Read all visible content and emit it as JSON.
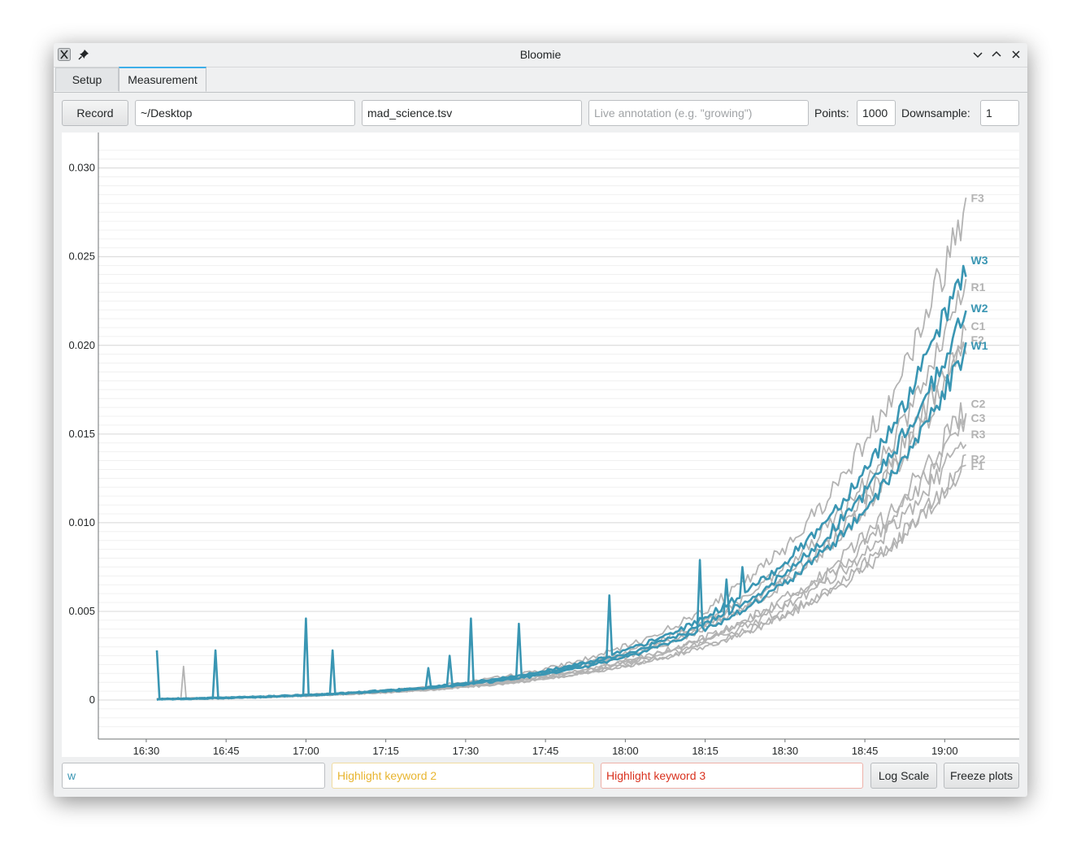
{
  "window": {
    "title": "Bloomie"
  },
  "tabs": [
    {
      "label": "Setup"
    },
    {
      "label": "Measurement"
    }
  ],
  "toolbar": {
    "record_label": "Record",
    "directory_value": "~/Desktop",
    "filename_value": "mad_science.tsv",
    "annotation_placeholder": "Live annotation (e.g. \"growing\")",
    "points_label": "Points:",
    "points_value": "1000",
    "downsample_label": "Downsample:",
    "downsample_value": "1"
  },
  "bottom": {
    "highlight1_value": "w",
    "highlight2_placeholder": "Highlight keyword 2",
    "highlight3_placeholder": "Highlight keyword 3",
    "log_scale_label": "Log Scale",
    "freeze_label": "Freeze plots"
  },
  "colors": {
    "highlight": "#3a96b3",
    "normal": "#b3b3b3",
    "highlight2": "#e8b530",
    "highlight3": "#d9321f"
  },
  "chart_data": {
    "type": "line",
    "title": "",
    "xlabel": "",
    "ylabel": "",
    "x_ticks": [
      "16:30",
      "16:45",
      "17:00",
      "17:15",
      "17:30",
      "17:45",
      "18:00",
      "18:15",
      "18:30",
      "18:45",
      "19:00"
    ],
    "y_ticks": [
      "0",
      "0.005",
      "0.010",
      "0.015",
      "0.020",
      "0.025",
      "0.030"
    ],
    "xlim": [
      "16:21",
      "19:14"
    ],
    "ylim": [
      -0.0022,
      0.032
    ],
    "grid": true,
    "legend": "end-of-line labels",
    "series": [
      {
        "name": "F3",
        "highlight": false,
        "end": 0.0283
      },
      {
        "name": "W3",
        "highlight": true,
        "end": 0.0248
      },
      {
        "name": "R1",
        "highlight": false,
        "end": 0.0233
      },
      {
        "name": "W2",
        "highlight": true,
        "end": 0.0221
      },
      {
        "name": "C1",
        "highlight": false,
        "end": 0.0211
      },
      {
        "name": "F2",
        "highlight": false,
        "end": 0.0203
      },
      {
        "name": "W1",
        "highlight": true,
        "end": 0.02
      },
      {
        "name": "C2",
        "highlight": false,
        "end": 0.0167
      },
      {
        "name": "C3",
        "highlight": false,
        "end": 0.0159
      },
      {
        "name": "R3",
        "highlight": false,
        "end": 0.015
      },
      {
        "name": "R2",
        "highlight": false,
        "end": 0.0136
      },
      {
        "name": "F1",
        "highlight": false,
        "end": 0.0132
      }
    ],
    "spikes": [
      {
        "series": "W1",
        "t": "16:32",
        "value": 0.0028
      },
      {
        "series": "F2",
        "t": "16:37",
        "value": 0.0019
      },
      {
        "series": "W2",
        "t": "16:43",
        "value": 0.0028
      },
      {
        "series": "W3",
        "t": "17:00",
        "value": 0.0046
      },
      {
        "series": "W1",
        "t": "17:05",
        "value": 0.0028
      },
      {
        "series": "W2",
        "t": "17:23",
        "value": 0.0018
      },
      {
        "series": "W3",
        "t": "17:27",
        "value": 0.0025
      },
      {
        "series": "W1",
        "t": "17:31",
        "value": 0.0046
      },
      {
        "series": "W2",
        "t": "17:40",
        "value": 0.0043
      },
      {
        "series": "W3",
        "t": "17:57",
        "value": 0.0059
      },
      {
        "series": "W1",
        "t": "18:14",
        "value": 0.0079
      },
      {
        "series": "W2",
        "t": "18:19",
        "value": 0.0068
      },
      {
        "series": "W3",
        "t": "18:22",
        "value": 0.0075
      }
    ]
  }
}
